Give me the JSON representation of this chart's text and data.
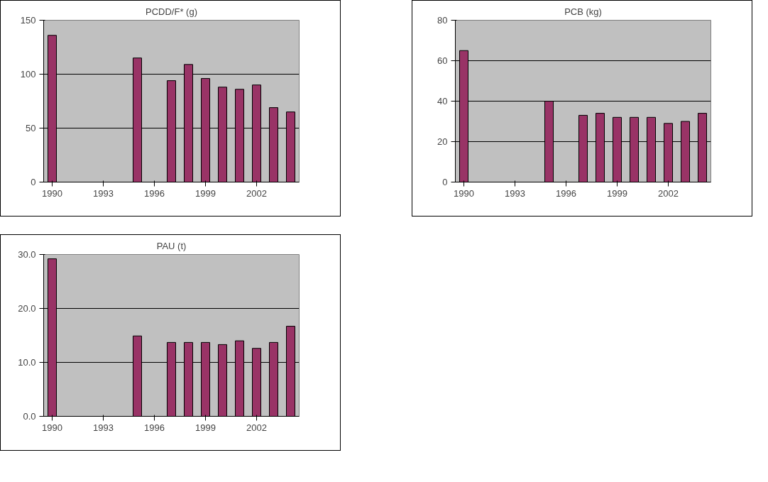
{
  "chart_data": [
    {
      "type": "bar",
      "title": "PCDD/F* (g)",
      "categories": [
        "1990",
        null,
        null,
        "1993",
        null,
        null,
        "1996",
        null,
        null,
        "1999",
        null,
        null,
        "2002",
        null,
        null
      ],
      "values": [
        136,
        null,
        null,
        null,
        null,
        115,
        null,
        94,
        109,
        96,
        88,
        86,
        90,
        69,
        65
      ],
      "color": "#993366",
      "ylim": [
        0,
        150
      ],
      "yticks": [
        0,
        50,
        100,
        150
      ],
      "grid": "y"
    },
    {
      "type": "bar",
      "title": "PCB (kg)",
      "categories": [
        "1990",
        null,
        null,
        "1993",
        null,
        null,
        "1996",
        null,
        null,
        "1999",
        null,
        null,
        "2002",
        null,
        null
      ],
      "values": [
        65,
        null,
        null,
        null,
        null,
        40,
        null,
        33,
        34,
        32,
        32,
        32,
        29,
        30,
        34
      ],
      "color": "#993366",
      "ylim": [
        0,
        80
      ],
      "yticks": [
        0,
        20,
        40,
        60,
        80
      ],
      "grid": "y"
    },
    {
      "type": "bar",
      "title": "PAU (t)",
      "categories": [
        "1990",
        null,
        null,
        "1993",
        null,
        null,
        "1996",
        null,
        null,
        "1999",
        null,
        null,
        "2002",
        null,
        null
      ],
      "values": [
        29.2,
        null,
        null,
        null,
        null,
        14.9,
        null,
        13.7,
        13.7,
        13.7,
        13.3,
        14.0,
        12.6,
        13.7,
        16.7
      ],
      "color": "#993366",
      "ylim": [
        0,
        30
      ],
      "yticks": [
        {
          "value": 0,
          "label": "0.0"
        },
        {
          "value": 10,
          "label": "10.0"
        },
        {
          "value": 20,
          "label": "20.0"
        },
        {
          "value": 30,
          "label": "30.0"
        }
      ],
      "grid": "y"
    }
  ]
}
